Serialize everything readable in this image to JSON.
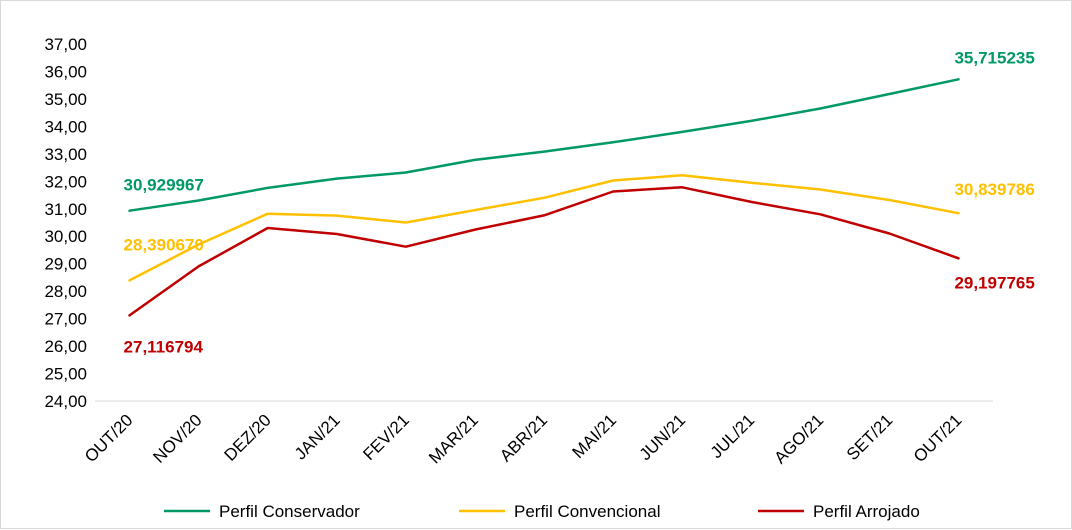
{
  "chart_data": {
    "type": "line",
    "title": "",
    "xlabel": "",
    "ylabel": "",
    "categories": [
      "OUT/20",
      "NOV/20",
      "DEZ/20",
      "JAN/21",
      "FEV/21",
      "MAR/21",
      "ABR/21",
      "MAI/21",
      "JUN/21",
      "JUL/21",
      "AGO/21",
      "SET/21",
      "OUT/21"
    ],
    "ylim": [
      24,
      37
    ],
    "yticks": [
      "24,00",
      "25,00",
      "26,00",
      "27,00",
      "28,00",
      "29,00",
      "30,00",
      "31,00",
      "32,00",
      "33,00",
      "34,00",
      "35,00",
      "36,00",
      "37,00"
    ],
    "grid": false,
    "legend_position": "bottom",
    "series": [
      {
        "name": "Perfil Conservador",
        "color": "#009966",
        "values": [
          30.929967,
          31.3,
          31.76,
          32.1,
          32.32,
          32.78,
          33.08,
          33.42,
          33.8,
          34.2,
          34.65,
          35.18,
          35.715235
        ],
        "labels": [
          {
            "index": 0,
            "text": "30,929967"
          },
          {
            "index": 12,
            "text": "35,715235"
          }
        ]
      },
      {
        "name": "Perfil Convencional",
        "color": "#FFC000",
        "values": [
          28.39067,
          29.7,
          30.82,
          30.75,
          30.5,
          30.95,
          31.4,
          32.03,
          32.22,
          31.95,
          31.7,
          31.32,
          30.839786
        ],
        "labels": [
          {
            "index": 0,
            "text": "28,390670"
          },
          {
            "index": 12,
            "text": "30,839786"
          }
        ]
      },
      {
        "name": "Perfil Arrojado",
        "color": "#C00000",
        "values": [
          27.116794,
          28.9,
          30.3,
          30.08,
          29.62,
          30.24,
          30.76,
          31.63,
          31.78,
          31.25,
          30.8,
          30.1,
          29.197765
        ],
        "labels": [
          {
            "index": 0,
            "text": "27,116794"
          },
          {
            "index": 12,
            "text": "29,197765"
          }
        ]
      }
    ]
  }
}
